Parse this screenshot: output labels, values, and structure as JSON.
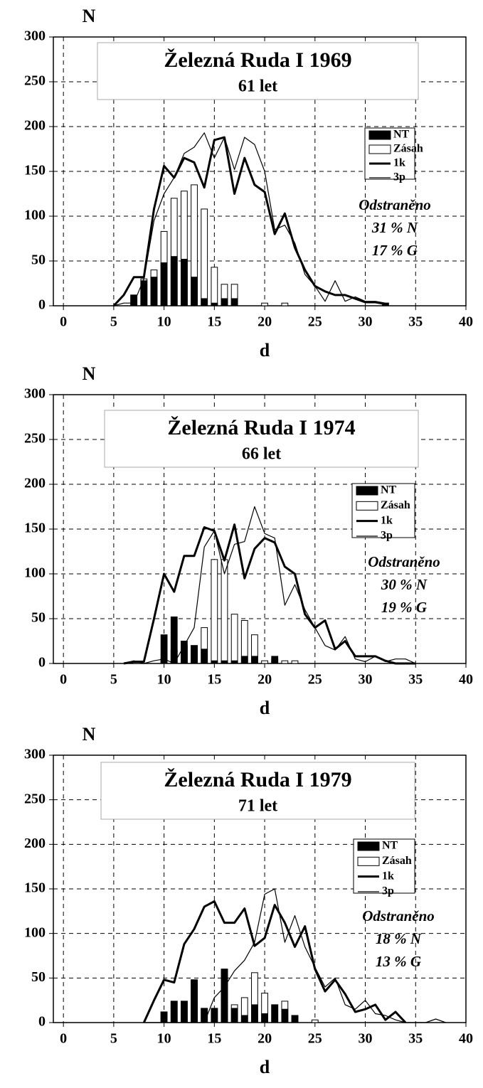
{
  "chart_data": [
    {
      "type": "combo",
      "title": "Železná Ruda I 1969",
      "subtitle": "61 let",
      "y_label": "N",
      "x_label": "d",
      "annotation": [
        "Odstraněno",
        "31 % N",
        "17 % G"
      ],
      "xlim": [
        -1,
        40
      ],
      "xticks": [
        0,
        5,
        10,
        15,
        20,
        25,
        30,
        35,
        40
      ],
      "ylim": [
        0,
        300
      ],
      "yticks": [
        0,
        50,
        100,
        150,
        200,
        250,
        300
      ],
      "grid": true,
      "legend": "right",
      "x": [
        5,
        6,
        7,
        8,
        9,
        10,
        11,
        12,
        13,
        14,
        15,
        16,
        17,
        18,
        19,
        20,
        21,
        22,
        23,
        24,
        25,
        26,
        27,
        28,
        29,
        30,
        31,
        32
      ],
      "series": [
        {
          "name": "Zásah",
          "kind": "bar",
          "color": "#ffffff",
          "values": [
            null,
            null,
            12,
            30,
            40,
            83,
            120,
            128,
            135,
            108,
            43,
            24,
            24,
            null,
            null,
            3,
            null,
            3,
            null,
            null,
            null,
            null,
            null,
            null,
            null,
            null,
            null,
            3
          ]
        },
        {
          "name": "NT",
          "kind": "bar",
          "color": "#000000",
          "values": [
            null,
            null,
            12,
            28,
            32,
            48,
            55,
            52,
            32,
            8,
            3,
            8,
            8,
            null,
            null,
            null,
            null,
            null,
            null,
            null,
            null,
            null,
            null,
            null,
            null,
            null,
            null,
            3
          ]
        },
        {
          "name": "1k",
          "kind": "line",
          "color": "#000000",
          "values": [
            0,
            12,
            32,
            32,
            108,
            156,
            143,
            165,
            160,
            132,
            185,
            188,
            125,
            165,
            135,
            127,
            80,
            103,
            65,
            40,
            22,
            16,
            12,
            12,
            8,
            4,
            4,
            2
          ]
        },
        {
          "name": "3p",
          "kind": "line",
          "color": "#000000",
          "values": [
            0,
            3,
            3,
            30,
            95,
            125,
            143,
            170,
            177,
            193,
            165,
            188,
            152,
            188,
            180,
            150,
            85,
            90,
            70,
            35,
            22,
            5,
            28,
            5,
            10,
            5,
            5,
            3
          ]
        }
      ]
    },
    {
      "type": "combo",
      "title": "Železná Ruda I 1974",
      "subtitle": "66 let",
      "y_label": "N",
      "x_label": "d",
      "annotation": [
        "Odstraněno",
        "30 % N",
        "19  % G"
      ],
      "xlim": [
        -1,
        40
      ],
      "xticks": [
        0,
        5,
        10,
        15,
        20,
        25,
        30,
        35,
        40
      ],
      "ylim": [
        0,
        300
      ],
      "yticks": [
        0,
        50,
        100,
        150,
        200,
        250,
        300
      ],
      "grid": true,
      "legend": "right",
      "x": [
        6,
        7,
        8,
        9,
        10,
        11,
        12,
        13,
        14,
        15,
        16,
        17,
        18,
        19,
        20,
        21,
        22,
        23,
        24,
        25,
        26,
        27,
        28,
        29,
        30,
        31,
        32,
        33,
        34,
        35
      ],
      "series": [
        {
          "name": "Zásah",
          "kind": "bar",
          "color": "#ffffff",
          "values": [
            null,
            null,
            null,
            null,
            5,
            15,
            20,
            20,
            40,
            116,
            116,
            55,
            48,
            32,
            3,
            5,
            3,
            3,
            null,
            null,
            null,
            null,
            null,
            null,
            null,
            null,
            null,
            null,
            null,
            null
          ]
        },
        {
          "name": "NT",
          "kind": "bar",
          "color": "#000000",
          "values": [
            null,
            null,
            null,
            null,
            32,
            52,
            25,
            20,
            16,
            3,
            3,
            3,
            8,
            8,
            null,
            8,
            null,
            null,
            null,
            null,
            null,
            null,
            null,
            null,
            null,
            null,
            null,
            null,
            null,
            null
          ]
        },
        {
          "name": "1k",
          "kind": "line",
          "color": "#000000",
          "values": [
            0,
            2,
            2,
            50,
            100,
            80,
            120,
            120,
            152,
            148,
            115,
            155,
            95,
            128,
            140,
            135,
            108,
            100,
            55,
            40,
            48,
            16,
            25,
            8,
            8,
            8,
            3,
            0,
            0,
            0
          ]
        },
        {
          "name": "3p",
          "kind": "line",
          "color": "#000000",
          "values": [
            0,
            3,
            0,
            3,
            5,
            0,
            20,
            40,
            130,
            148,
            100,
            133,
            136,
            175,
            145,
            140,
            65,
            88,
            60,
            40,
            20,
            15,
            30,
            5,
            2,
            8,
            2,
            5,
            5,
            0
          ]
        }
      ]
    },
    {
      "type": "combo",
      "title": "Železná Ruda I 1979",
      "subtitle": "71 let",
      "y_label": "N",
      "x_label": "d",
      "annotation": [
        "Odstraněno",
        "18 % N",
        "13 % G"
      ],
      "xlim": [
        -1,
        40
      ],
      "xticks": [
        0,
        5,
        10,
        15,
        20,
        25,
        30,
        35,
        40
      ],
      "ylim": [
        0,
        300
      ],
      "yticks": [
        0,
        50,
        100,
        150,
        200,
        250,
        300
      ],
      "grid": true,
      "legend": "right",
      "x": [
        8,
        9,
        10,
        11,
        12,
        13,
        14,
        15,
        16,
        17,
        18,
        19,
        20,
        21,
        22,
        23,
        24,
        25,
        26,
        27,
        28,
        29,
        30,
        31,
        32,
        33,
        34,
        35,
        36,
        37,
        38
      ],
      "series": [
        {
          "name": "Zásah",
          "kind": "bar",
          "color": "#ffffff",
          "values": [
            null,
            null,
            12,
            24,
            24,
            48,
            16,
            16,
            60,
            20,
            28,
            56,
            33,
            20,
            24,
            8,
            null,
            3,
            null,
            null,
            null,
            null,
            null,
            null,
            null,
            null,
            null,
            null,
            null,
            null,
            null
          ]
        },
        {
          "name": "NT",
          "kind": "bar",
          "color": "#000000",
          "values": [
            null,
            null,
            12,
            24,
            24,
            48,
            16,
            16,
            60,
            16,
            8,
            20,
            10,
            20,
            15,
            8,
            null,
            null,
            null,
            null,
            null,
            null,
            null,
            null,
            null,
            null,
            null,
            null,
            null,
            null,
            null
          ]
        },
        {
          "name": "1k",
          "kind": "line",
          "color": "#000000",
          "values": [
            0,
            25,
            48,
            45,
            88,
            105,
            130,
            136,
            112,
            112,
            128,
            86,
            95,
            132,
            112,
            85,
            108,
            60,
            35,
            48,
            32,
            12,
            15,
            20,
            3,
            12,
            0,
            null,
            null,
            null,
            null
          ]
        },
        {
          "name": "3p",
          "kind": "line",
          "color": "#000000",
          "values": [
            0,
            0,
            0,
            0,
            0,
            0,
            0,
            28,
            40,
            58,
            70,
            90,
            144,
            150,
            90,
            120,
            85,
            62,
            40,
            50,
            20,
            15,
            25,
            10,
            8,
            3,
            0,
            0,
            0,
            4,
            0
          ]
        }
      ]
    }
  ]
}
